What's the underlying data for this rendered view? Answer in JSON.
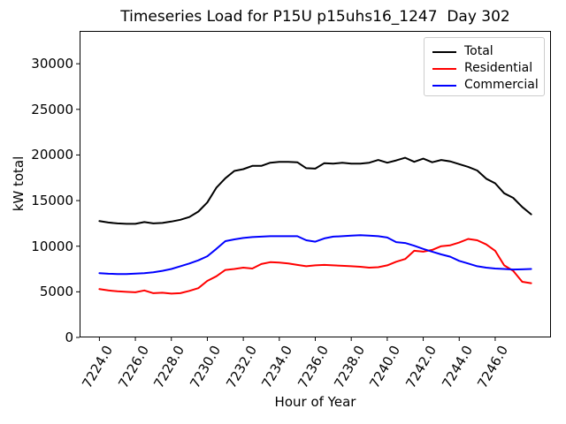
{
  "chart_data": {
    "type": "line",
    "title": "Timeseries Load for P15U p15uhs16_1247  Day 302",
    "xlabel": "Hour of Year",
    "ylabel": "kW total",
    "xlim": [
      7222.9,
      7249.1
    ],
    "ylim": [
      0,
      33600
    ],
    "grid": false,
    "legend_position": "upper right",
    "xticks": {
      "values": [
        7224,
        7226,
        7228,
        7230,
        7232,
        7234,
        7236,
        7238,
        7240,
        7242,
        7244,
        7246
      ],
      "labels": [
        "7224.0",
        "7226.0",
        "7228.0",
        "7230.0",
        "7232.0",
        "7234.0",
        "7236.0",
        "7238.0",
        "7240.0",
        "7242.0",
        "7244.0",
        "7246.0"
      ]
    },
    "yticks": {
      "values": [
        0,
        5000,
        10000,
        15000,
        20000,
        25000,
        30000
      ],
      "labels": [
        "0",
        "5000",
        "10000",
        "15000",
        "20000",
        "25000",
        "30000"
      ]
    },
    "x": [
      7224.0,
      7224.5,
      7225.0,
      7225.5,
      7226.0,
      7226.5,
      7227.0,
      7227.5,
      7228.0,
      7228.5,
      7229.0,
      7229.5,
      7230.0,
      7230.5,
      7231.0,
      7231.5,
      7232.0,
      7232.5,
      7233.0,
      7233.5,
      7234.0,
      7234.5,
      7235.0,
      7235.5,
      7236.0,
      7236.5,
      7237.0,
      7237.5,
      7238.0,
      7238.5,
      7239.0,
      7239.5,
      7240.0,
      7240.5,
      7241.0,
      7241.5,
      7242.0,
      7242.5,
      7243.0,
      7243.5,
      7244.0,
      7244.5,
      7245.0,
      7245.5,
      7246.0,
      7246.5,
      7247.0,
      7247.5,
      7248.0
    ],
    "series": [
      {
        "name": "Total",
        "color": "#000000",
        "values": [
          12750,
          12600,
          12500,
          12450,
          12450,
          12650,
          12500,
          12550,
          12700,
          12900,
          13200,
          13800,
          14800,
          16400,
          17450,
          18250,
          18450,
          18800,
          18800,
          19150,
          19250,
          19250,
          19200,
          18550,
          18500,
          19100,
          19050,
          19150,
          19050,
          19050,
          19150,
          19450,
          19150,
          19400,
          19700,
          19250,
          19600,
          19200,
          19450,
          19300,
          19000,
          18700,
          18300,
          17400,
          16900,
          15800,
          15300,
          14300,
          13500
        ]
      },
      {
        "name": "Residential",
        "color": "#ff0000",
        "values": [
          5300,
          5150,
          5050,
          5000,
          4950,
          5150,
          4850,
          4900,
          4800,
          4850,
          5100,
          5400,
          6200,
          6700,
          7400,
          7500,
          7650,
          7550,
          8050,
          8250,
          8200,
          8100,
          7950,
          7800,
          7900,
          7950,
          7900,
          7850,
          7800,
          7750,
          7650,
          7700,
          7900,
          8300,
          8600,
          9500,
          9400,
          9600,
          10000,
          10100,
          10400,
          10800,
          10650,
          10200,
          9500,
          7900,
          7300,
          6100,
          5950
        ]
      },
      {
        "name": "Commercial",
        "color": "#0000ff",
        "values": [
          7050,
          6980,
          6950,
          6950,
          7000,
          7050,
          7150,
          7300,
          7500,
          7800,
          8100,
          8450,
          8900,
          9700,
          10550,
          10750,
          10900,
          11000,
          11050,
          11100,
          11100,
          11100,
          11100,
          10650,
          10500,
          10850,
          11050,
          11100,
          11150,
          11200,
          11150,
          11100,
          10950,
          10450,
          10350,
          10050,
          9700,
          9400,
          9100,
          8850,
          8400,
          8100,
          7800,
          7650,
          7550,
          7500,
          7450,
          7470,
          7500
        ]
      }
    ]
  }
}
